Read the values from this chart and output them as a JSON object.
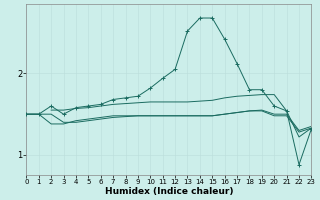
{
  "xlabel": "Humidex (Indice chaleur)",
  "bg_color": "#cceeea",
  "grid_color_minor": "#bbddda",
  "grid_color_major": "#aacccc",
  "line_color": "#1a6b60",
  "xlim": [
    0,
    23
  ],
  "ylim": [
    0.75,
    2.85
  ],
  "yticks": [
    1,
    2
  ],
  "xticks": [
    0,
    1,
    2,
    3,
    4,
    5,
    6,
    7,
    8,
    9,
    10,
    11,
    12,
    13,
    14,
    15,
    16,
    17,
    18,
    19,
    20,
    21,
    22,
    23
  ],
  "line1_x": [
    0,
    1,
    2,
    3,
    4,
    5,
    6,
    7,
    8,
    9,
    10,
    11,
    12,
    13,
    14,
    15,
    16,
    17,
    18,
    19,
    20,
    21,
    22,
    23
  ],
  "line1_y": [
    1.5,
    1.5,
    1.5,
    1.4,
    1.4,
    1.42,
    1.44,
    1.46,
    1.47,
    1.48,
    1.48,
    1.48,
    1.48,
    1.48,
    1.48,
    1.48,
    1.5,
    1.52,
    1.54,
    1.55,
    1.5,
    1.5,
    1.3,
    1.35
  ],
  "line2_x": [
    0,
    1,
    2,
    3,
    4,
    5,
    6,
    7,
    8,
    9,
    10,
    11,
    12,
    13,
    14,
    15,
    16,
    17,
    18,
    19,
    20,
    21,
    22,
    23
  ],
  "line2_y": [
    1.5,
    1.5,
    1.6,
    1.5,
    1.58,
    1.6,
    1.62,
    1.68,
    1.7,
    1.72,
    1.82,
    1.94,
    2.05,
    2.52,
    2.68,
    2.68,
    2.42,
    2.12,
    1.8,
    1.8,
    1.6,
    1.54,
    0.88,
    1.32
  ],
  "line3_x": [
    2,
    3,
    4,
    5,
    6,
    7,
    8,
    9,
    10,
    11,
    12,
    13,
    14,
    15,
    16,
    17,
    18,
    19,
    20,
    21,
    22,
    23
  ],
  "line3_y": [
    1.55,
    1.55,
    1.57,
    1.58,
    1.6,
    1.62,
    1.63,
    1.64,
    1.65,
    1.65,
    1.65,
    1.65,
    1.66,
    1.67,
    1.7,
    1.72,
    1.73,
    1.74,
    1.74,
    1.54,
    1.22,
    1.33
  ],
  "line4_x": [
    0,
    1,
    2,
    3,
    4,
    5,
    6,
    7,
    8,
    9,
    10,
    11,
    12,
    13,
    14,
    15,
    16,
    17,
    18,
    19,
    20,
    21,
    22,
    23
  ],
  "line4_y": [
    1.5,
    1.5,
    1.38,
    1.38,
    1.42,
    1.44,
    1.46,
    1.48,
    1.48,
    1.48,
    1.48,
    1.48,
    1.48,
    1.48,
    1.48,
    1.48,
    1.5,
    1.52,
    1.54,
    1.54,
    1.48,
    1.48,
    1.28,
    1.33
  ]
}
